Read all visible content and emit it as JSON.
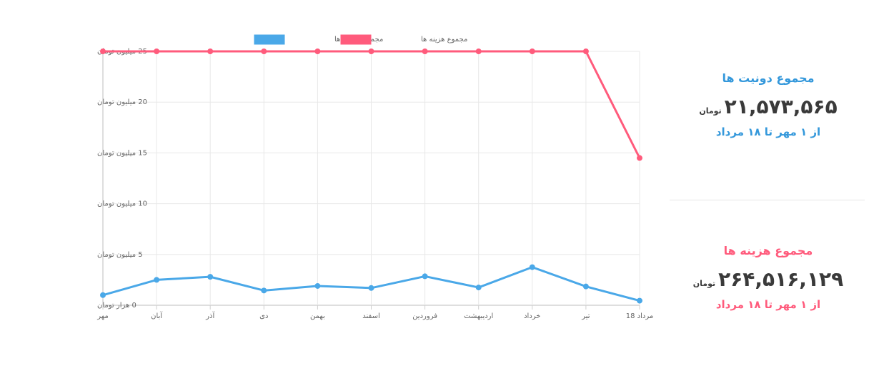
{
  "chart_data": {
    "type": "line",
    "categories": [
      "مهر",
      "آبان",
      "آذر",
      "دی",
      "بهمن",
      "اسفند",
      "فروردین",
      "اردیبهشت",
      "خرداد",
      "تیر",
      "18 مرداد"
    ],
    "series": [
      {
        "name": "مجموع دونیت ها",
        "color": "#4aa8e8",
        "values": [
          1.0,
          2.5,
          2.8,
          1.45,
          1.9,
          1.7,
          2.85,
          1.75,
          3.75,
          1.85,
          0.45
        ]
      },
      {
        "name": "مجموع هزینه ها",
        "color": "#ff5b7c",
        "values": [
          25,
          25,
          25,
          25,
          25,
          25,
          25,
          25,
          25,
          25,
          14.5
        ]
      }
    ],
    "ylim": [
      0,
      25
    ],
    "yticks": [
      {
        "value": 25,
        "label": "25 میلیون تومان"
      },
      {
        "value": 20,
        "label": "20 میلیون تومان"
      },
      {
        "value": 15,
        "label": "15 میلیون تومان"
      },
      {
        "value": 10,
        "label": "10 میلیون تومان"
      },
      {
        "value": 5,
        "label": "5 میلیون تومان"
      },
      {
        "value": 0,
        "label": "0 هزار تومان"
      }
    ],
    "grid": true,
    "legend": "top-center"
  },
  "donations_panel": {
    "title": "مجموع دونیت ها",
    "amount": "۲۱,۵۷۳,۵۶۵",
    "unit": "تومان",
    "range": "از ۱ مهر تا ۱۸ مرداد"
  },
  "costs_panel": {
    "title": "مجموع هزینه ها",
    "amount": "۲۶۴,۵۱۶,۱۲۹",
    "unit": "تومان",
    "range": "از ۱ مهر تا ۱۸ مرداد"
  }
}
